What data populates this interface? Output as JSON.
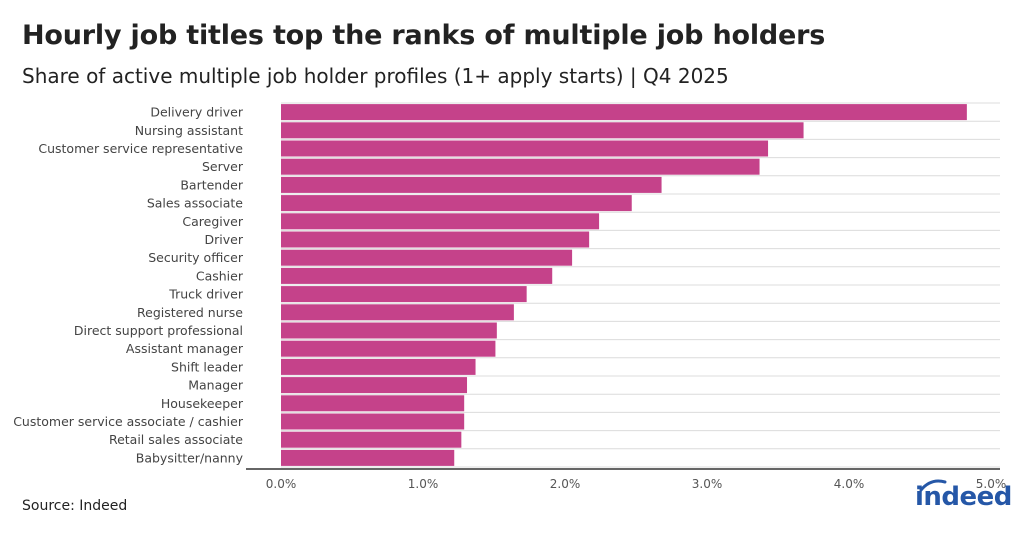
{
  "header": {
    "title": "Hourly job titles top the ranks of multiple job holders",
    "subtitle": "Share of active multiple job holder profiles (1+ apply starts) | Q4 2025"
  },
  "footer": {
    "source": "Source: Indeed",
    "logo_text": "indeed"
  },
  "colors": {
    "bar": "#c5428a",
    "grid": "#dcdcdc",
    "axis": "#333333"
  },
  "chart_data": {
    "type": "bar",
    "orientation": "horizontal",
    "categories": [
      "Delivery driver",
      "Nursing assistant",
      "Customer service representative",
      "Server",
      "Bartender",
      "Sales associate",
      "Caregiver",
      "Driver",
      "Security officer",
      "Cashier",
      "Truck driver",
      "Registered nurse",
      "Direct support professional",
      "Assistant manager",
      "Shift leader",
      "Manager",
      "Housekeeper",
      "Customer service associate / cashier",
      "Retail sales associate",
      "Babysitter/nanny"
    ],
    "values": [
      4.83,
      3.68,
      3.43,
      3.37,
      2.68,
      2.47,
      2.24,
      2.17,
      2.05,
      1.91,
      1.73,
      1.64,
      1.52,
      1.51,
      1.37,
      1.31,
      1.29,
      1.29,
      1.27,
      1.22
    ],
    "xlim": [
      0,
      5
    ],
    "xticks": [
      "0.0%",
      "1.0%",
      "2.0%",
      "3.0%",
      "4.0%",
      "5.0%"
    ],
    "xtick_values": [
      0,
      1,
      2,
      3,
      4,
      5
    ],
    "grid": true,
    "legend": "none"
  }
}
